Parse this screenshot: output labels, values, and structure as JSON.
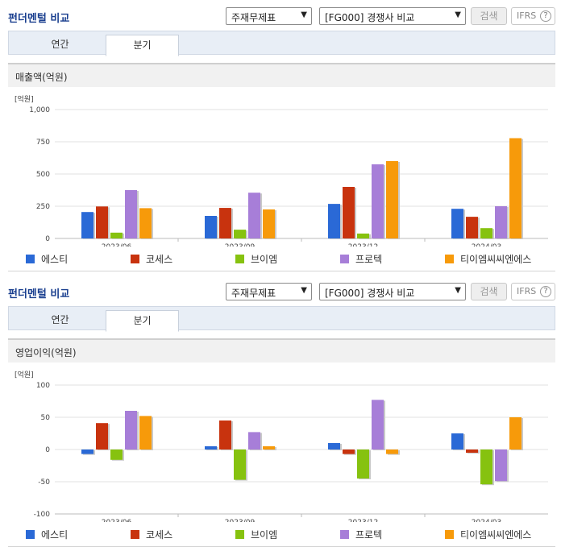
{
  "sections": [
    {
      "header": {
        "title": "펀더멘털 비교",
        "select_type": "주재무제표",
        "select_compare": "[FG000] 경쟁사 비교",
        "search_label": "검색",
        "ifrs_label": "IFRS",
        "help_label": "?"
      },
      "tabs": [
        {
          "label": "연간",
          "active": false
        },
        {
          "label": "분기",
          "active": true
        }
      ],
      "panel_title": "매출액(억원)"
    },
    {
      "header": {
        "title": "펀더멘털 비교",
        "select_type": "주재무제표",
        "select_compare": "[FG000] 경쟁사 비교",
        "search_label": "검색",
        "ifrs_label": "IFRS",
        "help_label": "?"
      },
      "tabs": [
        {
          "label": "연간",
          "active": false
        },
        {
          "label": "분기",
          "active": true
        }
      ],
      "panel_title": "영업이익(억원)"
    }
  ],
  "colors": {
    "에스티": "#2a69d6",
    "코세스": "#c8330e",
    "브이엠": "#86c20f",
    "프로텍": "#a77ed8",
    "티이엠씨씨엔에스": "#f79a0a"
  },
  "chart_data": [
    {
      "type": "bar",
      "unit_label": "[억원]",
      "categories": [
        "2023/06",
        "2023/09",
        "2023/12",
        "2024/03"
      ],
      "ylim": [
        0,
        1000
      ],
      "yticks": [
        0,
        250,
        500,
        750,
        1000
      ],
      "ytick_labels": [
        "0",
        "250",
        "500",
        "750",
        "1,000"
      ],
      "series": [
        {
          "name": "에스티",
          "values": [
            205,
            175,
            268,
            230
          ]
        },
        {
          "name": "코세스",
          "values": [
            248,
            237,
            400,
            168
          ]
        },
        {
          "name": "브이엠",
          "values": [
            45,
            68,
            38,
            80
          ]
        },
        {
          "name": "프로텍",
          "values": [
            375,
            355,
            575,
            250
          ]
        },
        {
          "name": "티이엠씨씨엔에스",
          "values": [
            235,
            225,
            600,
            778
          ]
        }
      ]
    },
    {
      "type": "bar",
      "unit_label": "[억원]",
      "categories": [
        "2023/06",
        "2023/09",
        "2023/12",
        "2024/03"
      ],
      "ylim": [
        -100,
        100
      ],
      "yticks": [
        -100,
        -50,
        0,
        50,
        100
      ],
      "ytick_labels": [
        "-100",
        "-50",
        "0",
        "50",
        "100"
      ],
      "series": [
        {
          "name": "에스티",
          "values": [
            -7,
            5,
            10,
            25
          ]
        },
        {
          "name": "코세스",
          "values": [
            41,
            45,
            -7,
            -5
          ]
        },
        {
          "name": "브이엠",
          "values": [
            -16,
            -47,
            -45,
            -54
          ]
        },
        {
          "name": "프로텍",
          "values": [
            60,
            27,
            77,
            -49
          ]
        },
        {
          "name": "티이엠씨씨엔에스",
          "values": [
            52,
            5,
            -7,
            50
          ]
        }
      ]
    }
  ]
}
